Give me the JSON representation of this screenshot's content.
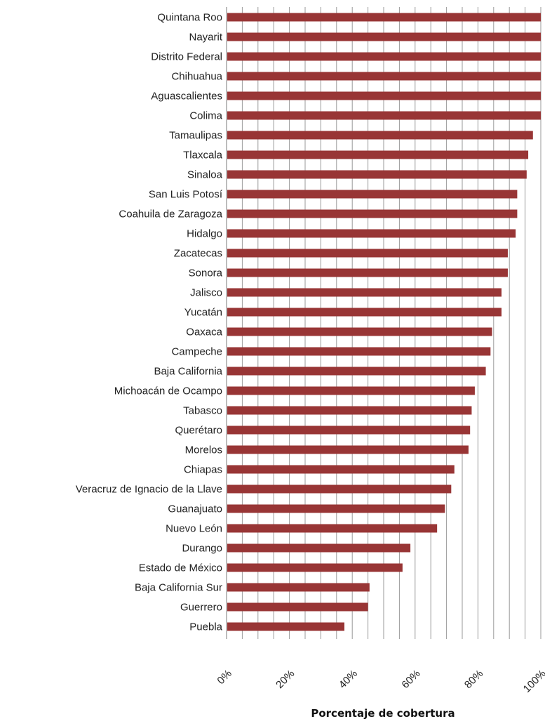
{
  "chart_data": {
    "type": "bar",
    "orientation": "horizontal",
    "categories": [
      "Quintana Roo",
      "Nayarit",
      "Distrito Federal",
      "Chihuahua",
      "Aguascalientes",
      "Colima",
      "Tamaulipas",
      "Tlaxcala",
      "Sinaloa",
      "San Luis Potosí",
      "Coahuila de Zaragoza",
      "Hidalgo",
      "Zacatecas",
      "Sonora",
      "Jalisco",
      "Yucatán",
      "Oaxaca",
      "Campeche",
      "Baja California",
      "Michoacán de Ocampo",
      "Tabasco",
      "Querétaro",
      "Morelos",
      "Chiapas",
      "Veracruz de Ignacio de la Llave",
      "Guanajuato",
      "Nuevo León",
      "Durango",
      "Estado de México",
      "Baja California Sur",
      "Guerrero",
      "Puebla"
    ],
    "values": [
      100,
      100,
      100,
      100,
      100,
      100,
      97.5,
      96,
      95.5,
      92.5,
      92.5,
      92,
      89.5,
      89.5,
      87.5,
      87.5,
      84.5,
      84,
      82.5,
      79,
      78,
      77.5,
      77,
      72.5,
      71.5,
      69.5,
      67,
      58.5,
      56,
      45.5,
      45,
      37.5
    ],
    "x_ticks": [
      "0%",
      "20%",
      "40%",
      "60%",
      "80%",
      "100%"
    ],
    "x_tick_values": [
      0,
      20,
      40,
      60,
      80,
      100
    ],
    "xlim": [
      0,
      100
    ],
    "xlabel": "Porcentaje de cobertura",
    "ylabel": "",
    "grid": "vertical minor lines every 5%",
    "legend": "none",
    "bar_color": "#983535",
    "title": ""
  }
}
